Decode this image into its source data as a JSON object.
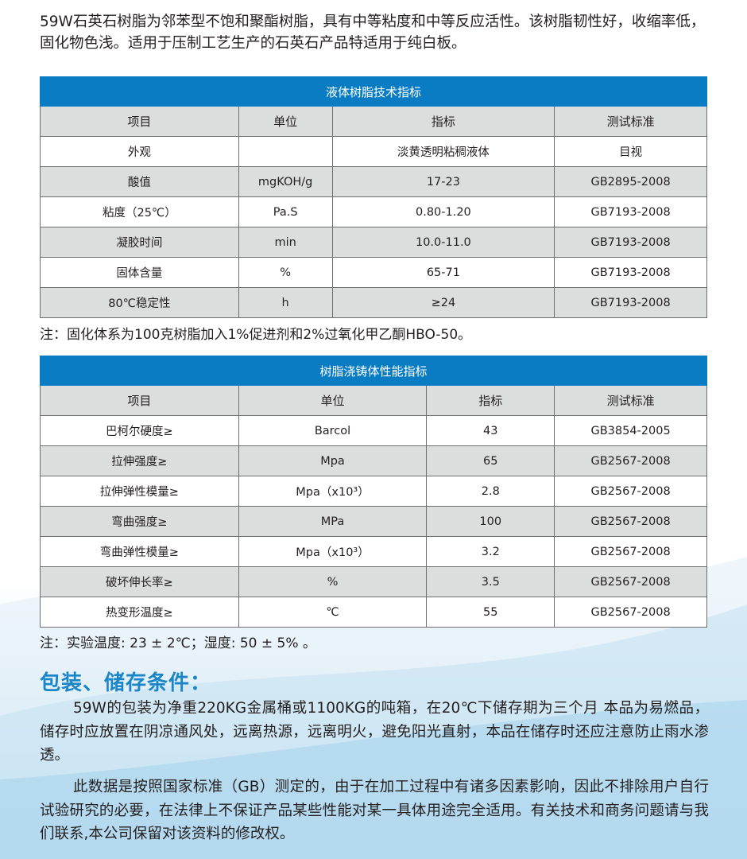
{
  "intro": "59W石英石树脂为邻苯型不饱和聚酯树脂，具有中等粘度和中等反应活性。该树脂韧性好，收缩率低，固化物色浅。适用于压制工艺生产的石英石产品特适用于纯白板。",
  "table1": {
    "title": "液体树脂技术指标",
    "headers": [
      "项目",
      "单位",
      "指标",
      "测试标准"
    ],
    "rows": [
      [
        "外观",
        "",
        "淡黄透明粘稠液体",
        "目视"
      ],
      [
        "酸值",
        "mgKOH/g",
        "17-23",
        "GB2895-2008"
      ],
      [
        "粘度（25℃）",
        "Pa.S",
        "0.80-1.20",
        "GB7193-2008"
      ],
      [
        "凝胶时间",
        "min",
        "10.0-11.0",
        "GB7193-2008"
      ],
      [
        "固体含量",
        "%",
        "65-71",
        "GB7193-2008"
      ],
      [
        "80℃稳定性",
        "h",
        "≥24",
        "GB7193-2008"
      ]
    ]
  },
  "note1": "注：固化体系为100克树脂加入1%促进剂和2%过氧化甲乙酮HBO-50。",
  "table2": {
    "title": "树脂浇铸体性能指标",
    "headers": [
      "项目",
      "单位",
      "指标",
      "测试标准"
    ],
    "rows": [
      [
        "巴柯尔硬度≥",
        "Barcol",
        "43",
        "GB3854-2005"
      ],
      [
        "拉伸强度≥",
        "Mpa",
        "65",
        "GB2567-2008"
      ],
      [
        "拉伸弹性模量≥",
        "Mpa（x10³）",
        "2.8",
        "GB2567-2008"
      ],
      [
        "弯曲强度≥",
        "MPa",
        "100",
        "GB2567-2008"
      ],
      [
        "弯曲弹性模量≥",
        "Mpa（x10³）",
        "3.2",
        "GB2567-2008"
      ],
      [
        "破坏伸长率≥",
        "%",
        "3.5",
        "GB2567-2008"
      ],
      [
        "热变形温度≥",
        "℃",
        "55",
        "GB2567-2008"
      ]
    ]
  },
  "note2": "注：实验温度: 23 ± 2℃；湿度: 50 ± 5% 。",
  "section_title": "包装、储存条件：",
  "paragraph1": "59W的包装为净重220KG金属桶或1100KG的吨箱，在20℃下储存期为三个月 本品为易燃品，储存时应放置在阴凉通风处，远离热源，远离明火，避免阳光直射，本品在储存时还应注意防止雨水渗透。",
  "paragraph2": "此数据是按照国家标准（GB）测定的，由于在加工过程中有诸多因素影响，因此不排除用户自行试验研究的必要，在法律上不保证产品某些性能对某一具体用途完全适用。有关技术和商务问题请与我们联系,本公司保留对该资料的修改权。",
  "colors": {
    "accent": "#0a7cc4",
    "heading": "#1a86c8",
    "row_shade": "#dcdddd"
  }
}
